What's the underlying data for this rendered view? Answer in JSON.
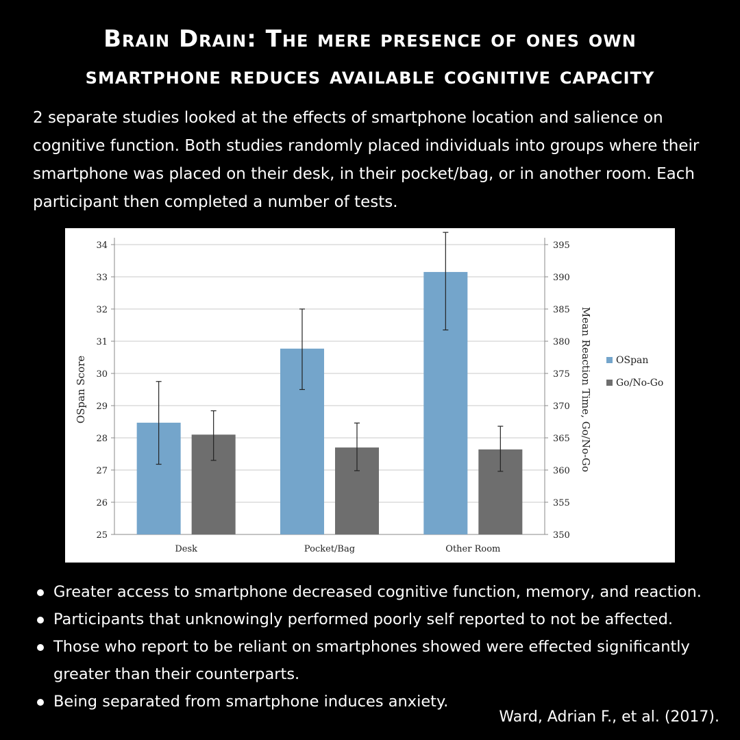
{
  "title_lines": [
    "Brain Drain: The mere presence of ones own",
    "smartphone reduces available cognitive capacity"
  ],
  "intro": "2 separate studies looked at the effects of smartphone location and salience on cognitive function. Both studies randomly placed individuals into groups where their smartphone was placed on their desk, in their pocket/bag, or in another room. Each participant then completed a number of tests.",
  "bullets": [
    "Greater access to smartphone decreased cognitive function, memory, and reaction.",
    "Participants that unknowingly performed poorly self reported to not be affected.",
    "Those who report to be reliant on smartphones showed were effected significantly greater than their counterparts.",
    "Being separated from smartphone induces anxiety."
  ],
  "citation": "Ward, Adrian F., et al. (2017).",
  "chart_data": {
    "type": "bar",
    "categories": [
      "Desk",
      "Pocket/Bag",
      "Other Room"
    ],
    "ylabel": "OSpan Score",
    "y2label": "Mean Reaction Time, Go/No-Go",
    "ylim": [
      25,
      34
    ],
    "y2lim": [
      350,
      395
    ],
    "yticks": [
      25,
      26,
      27,
      28,
      29,
      30,
      31,
      32,
      33,
      34
    ],
    "y2ticks": [
      350,
      355,
      360,
      365,
      370,
      375,
      380,
      385,
      390,
      395
    ],
    "grid": true,
    "legend_position": "right",
    "series": [
      {
        "name": "OSpan",
        "axis": "left",
        "color": "#74a5cb",
        "values": [
          28.47,
          30.77,
          33.15
        ],
        "error_low": [
          27.18,
          29.5,
          31.35
        ],
        "error_high": [
          29.75,
          32.0,
          34.38
        ]
      },
      {
        "name": "Go/No-Go",
        "axis": "right",
        "color": "#6e6e6e",
        "values": [
          365.5,
          363.5,
          363.2
        ],
        "error_low": [
          361.5,
          359.9,
          359.8
        ],
        "error_high": [
          369.2,
          367.3,
          366.8
        ]
      }
    ]
  }
}
